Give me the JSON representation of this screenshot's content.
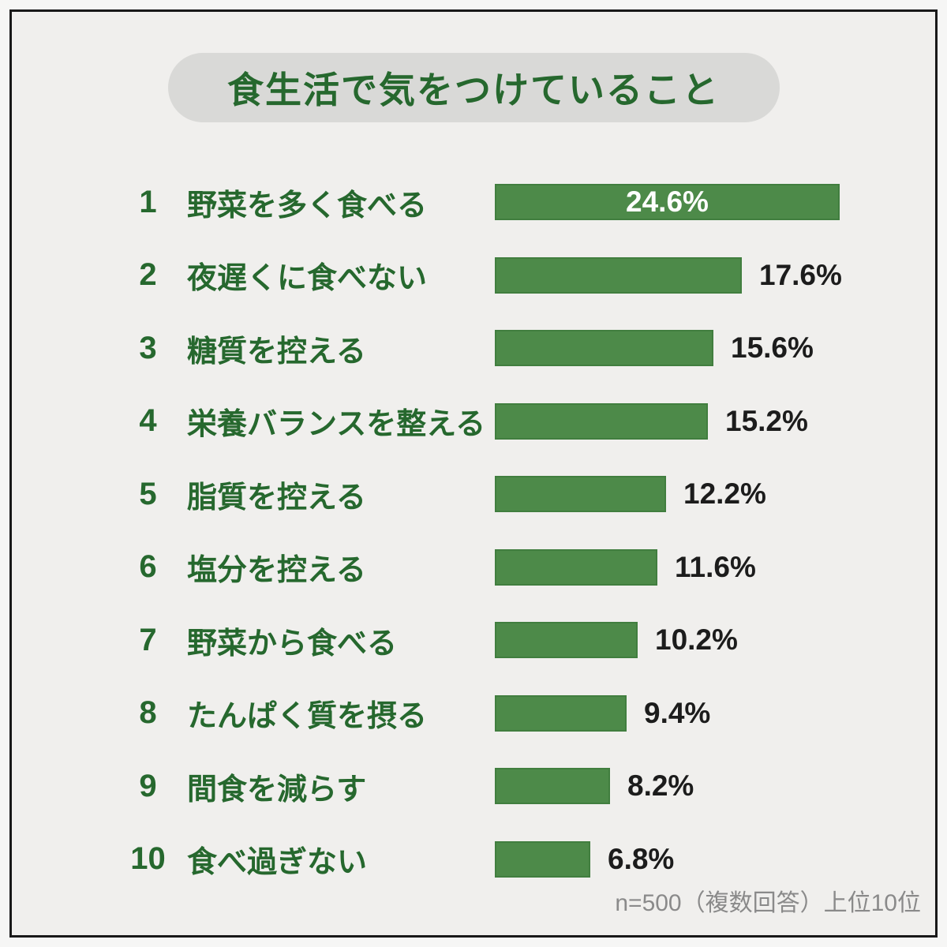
{
  "title": "食生活で気をつけていること",
  "footnote": "n=500（複数回答）上位10位",
  "colors": {
    "background": "#f0efed",
    "outer_background": "#f6f6f5",
    "frame_border": "#191919",
    "pill_background": "#d9d9d7",
    "title_text": "#26682e",
    "label_text": "#26682e",
    "bar_fill": "#4d8a49",
    "bar_border": "#417e3f",
    "value_text": "#1c1c1c",
    "value_text_inside": "#ffffff",
    "footnote_text": "#8a8a8a"
  },
  "chart_data": {
    "type": "bar",
    "orientation": "horizontal",
    "title": "食生活で気をつけていること",
    "note": "n=500（複数回答）上位10位",
    "unit": "%",
    "xlim": [
      0,
      25
    ],
    "grid": false,
    "legend": false,
    "ranks": [
      "1",
      "2",
      "3",
      "4",
      "5",
      "6",
      "7",
      "8",
      "9",
      "10"
    ],
    "categories": [
      "野菜を多く食べる",
      "夜遅くに食べない",
      "糖質を控える",
      "栄養バランスを整える",
      "脂質を控える",
      "塩分を控える",
      "野菜から食べる",
      "たんぱく質を摂る",
      "間食を減らす",
      "食べ過ぎない"
    ],
    "values": [
      24.6,
      17.6,
      15.6,
      15.2,
      12.2,
      11.6,
      10.2,
      9.4,
      8.2,
      6.8
    ],
    "value_labels": [
      "24.6%",
      "17.6%",
      "15.6%",
      "15.2%",
      "12.2%",
      "11.6%",
      "10.2%",
      "9.4%",
      "8.2%",
      "6.8%"
    ],
    "value_label_inside": [
      true,
      false,
      false,
      false,
      false,
      false,
      false,
      false,
      false,
      false
    ]
  }
}
